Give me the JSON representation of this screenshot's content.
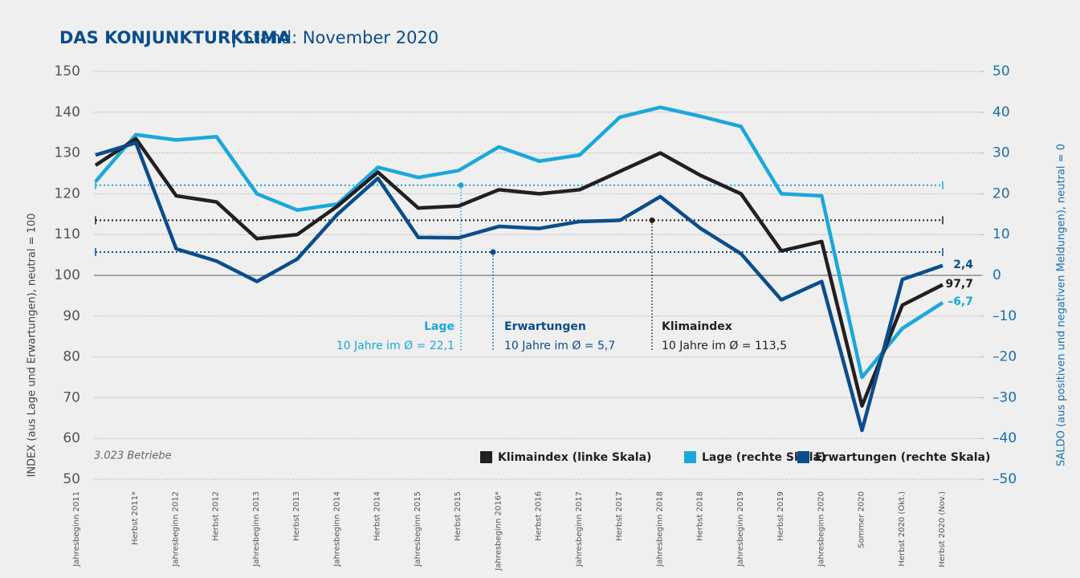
{
  "chart_data": {
    "type": "line",
    "title": "DAS KONJUNKTURKLIMA",
    "subtitle": "Stand: November 2020",
    "ylabel": "INDEX (aus Lage und Erwartungen), neutral = 100",
    "y2label": "SALDO (aus positiven und negativen Meldungen), neutral = 0",
    "note": "3.023 Betriebe",
    "categories": [
      "Jahresbeginn 2011",
      "Herbst 2011*",
      "Jahresbeginn 2012",
      "Herbst 2012",
      "Jahresbeginn 2013",
      "Herbst 2013",
      "Jahresbeginn 2014",
      "Herbst 2014",
      "Jahresbeginn 2015",
      "Herbst 2015",
      "Jahresbeginn 2016*",
      "Herbst 2016",
      "Jahresbeginn 2017",
      "Herbst 2017",
      "Jahresbeginn 2018",
      "Herbst 2018",
      "Jahresbeginn 2019",
      "Herbst 2019",
      "Jahresbeginn 2020",
      "Sommer 2020",
      "Herbst 2020 (Okt.)",
      "Herbst 2020 (Nov.)"
    ],
    "ylim": [
      50,
      150
    ],
    "yticks": [
      50,
      60,
      70,
      80,
      90,
      100,
      110,
      120,
      130,
      140,
      150
    ],
    "y2lim": [
      -50,
      50
    ],
    "y2ticks": [
      {
        "value": -50,
        "label": "–50"
      },
      {
        "value": -40,
        "label": "–40"
      },
      {
        "value": -30,
        "label": "–30"
      },
      {
        "value": -20,
        "label": "–20"
      },
      {
        "value": -10,
        "label": "–10"
      },
      0,
      10,
      20,
      30,
      40,
      50
    ],
    "grid": true,
    "legend": "bottom-right",
    "series": [
      {
        "name": "Klimaindex (linke Skala)",
        "color": "#231f20",
        "axis": "y",
        "values": [
          127,
          133.5,
          119.5,
          118,
          109,
          110,
          117,
          125.3,
          116.5,
          117,
          121,
          120,
          121,
          125.5,
          130,
          124.5,
          120,
          106,
          108.3,
          68,
          92.7,
          97.7
        ],
        "value_labels": [
          null,
          null,
          null,
          null,
          null,
          null,
          null,
          null,
          null,
          null,
          null,
          null,
          null,
          null,
          null,
          null,
          null,
          null,
          null,
          null,
          null,
          "97,7"
        ]
      },
      {
        "name": "Lage (rechte Skala)",
        "color": "#1aa7dc",
        "axis": "y2",
        "values": [
          23,
          34.5,
          33.2,
          34,
          20,
          16,
          17.5,
          26.5,
          24,
          25.7,
          31.5,
          28,
          29.5,
          38.8,
          41.2,
          39,
          36.5,
          20,
          19.5,
          -25,
          -13,
          -6.7
        ],
        "value_labels": [
          null,
          null,
          null,
          null,
          null,
          null,
          null,
          null,
          null,
          null,
          null,
          null,
          null,
          null,
          null,
          null,
          null,
          null,
          null,
          null,
          null,
          "–6,7"
        ]
      },
      {
        "name": "Erwartungen (rechte Skala)",
        "color": "#0a4d8c",
        "axis": "y2",
        "values": [
          29.5,
          32.5,
          6.5,
          3.5,
          -1.5,
          4,
          15,
          23.8,
          9.3,
          9.2,
          12,
          11.5,
          13.2,
          13.5,
          19.3,
          11.5,
          5.3,
          -6,
          -1.5,
          -38,
          -1,
          2.4
        ],
        "value_labels": [
          null,
          null,
          null,
          null,
          null,
          null,
          null,
          null,
          null,
          null,
          null,
          null,
          null,
          null,
          null,
          null,
          null,
          null,
          null,
          null,
          null,
          "2,4"
        ]
      }
    ],
    "references": [
      {
        "name": "Lage",
        "label": "10 Jahre im Ø = 22,1",
        "value": 22.1,
        "axis": "y2",
        "color": "#1aa7dc"
      },
      {
        "name": "Erwartungen",
        "label": "10 Jahre im Ø = 5,7",
        "value": 5.7,
        "axis": "y2",
        "color": "#0a4d8c"
      },
      {
        "name": "Klimaindex",
        "label": "10 Jahre im Ø = 113,5",
        "value": 113.5,
        "axis": "y",
        "color": "#231f20"
      }
    ]
  }
}
